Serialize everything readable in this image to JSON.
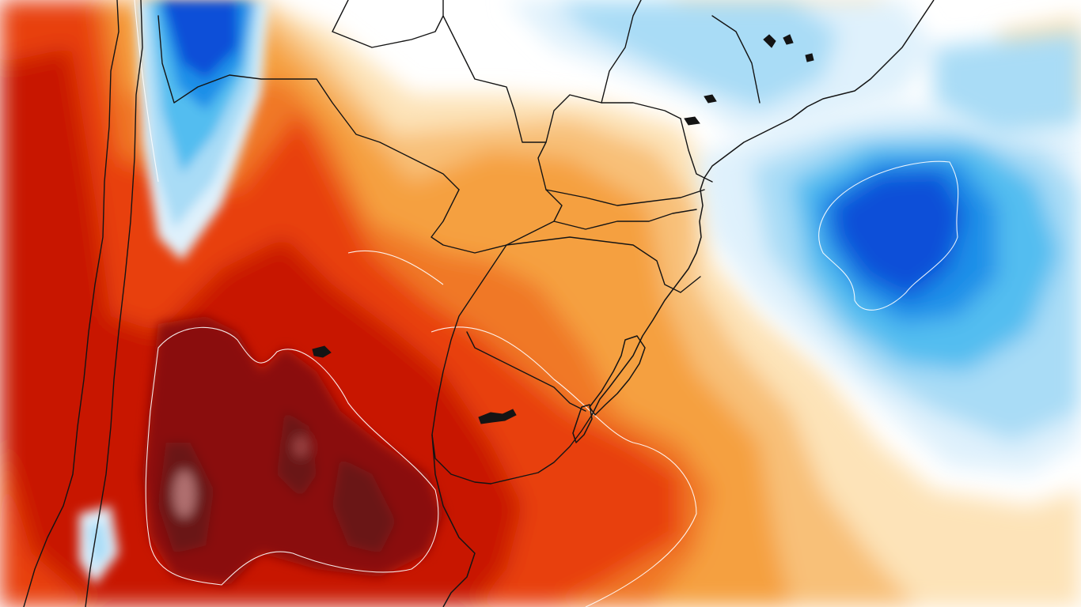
{
  "palette": {
    "warm": [
      "#fde3b8",
      "#f8c078",
      "#f5a040",
      "#f07828",
      "#e84010",
      "#c81800",
      "#8a1010",
      "#6a1818"
    ],
    "cool": [
      "#dff1fc",
      "#a9dcf6",
      "#52bdf0",
      "#1d8fe8",
      "#0a4fd8"
    ],
    "neutral": "#ffffff",
    "border": "#141414"
  }
}
